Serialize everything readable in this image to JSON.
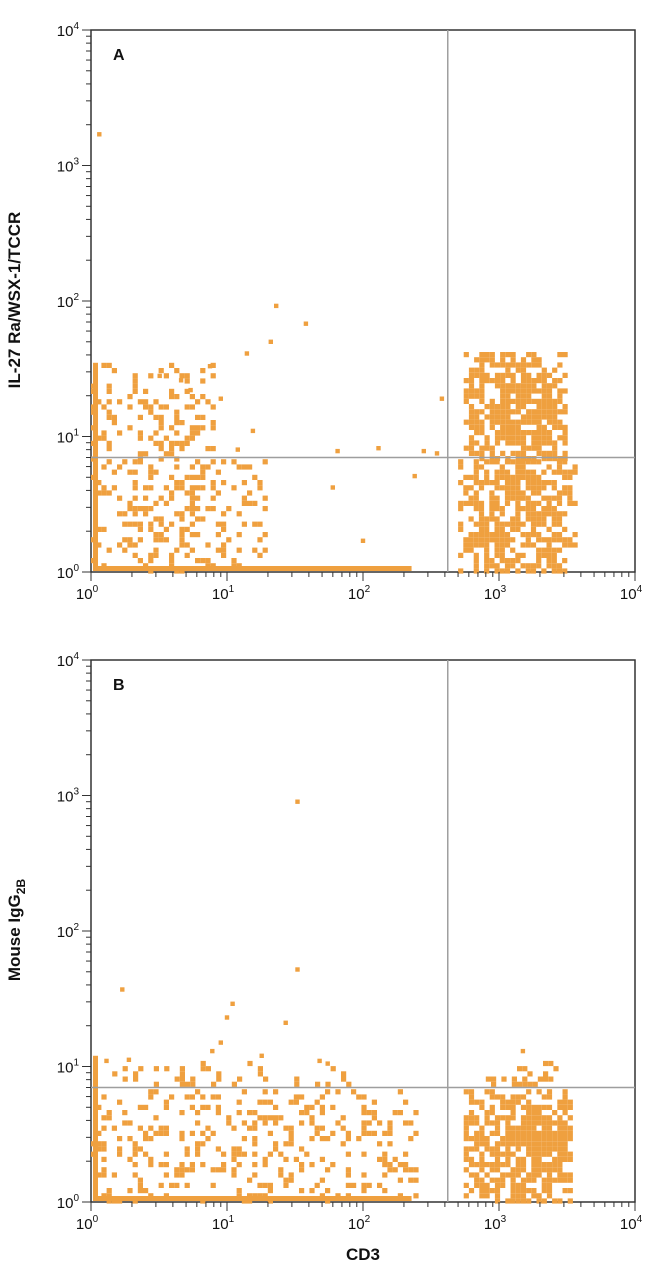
{
  "colors": {
    "dot": "#EFA03F",
    "frame": "#333333",
    "gate": "#9e9e9e",
    "background": "#ffffff"
  },
  "chart_data": [
    {
      "type": "scatter",
      "panel_label": "A",
      "xlabel": "",
      "ylabel": "IL-27 Ra/WSX-1/TCCR",
      "x_scale": "log",
      "y_scale": "log",
      "xlim": [
        1,
        10000
      ],
      "ylim": [
        1,
        10000
      ],
      "x_ticks": [
        1,
        10,
        100,
        1000,
        10000
      ],
      "y_ticks": [
        1,
        10,
        100,
        1000,
        10000
      ],
      "tick_labels": [
        "10",
        "10",
        "10",
        "10",
        "10"
      ],
      "tick_exponents": [
        "0",
        "1",
        "2",
        "3",
        "4"
      ],
      "quadrant_gate": {
        "x": 420,
        "y": 7
      },
      "populations": [
        {
          "name": "CD3- IL-27Ra-",
          "x_range": [
            1,
            20
          ],
          "y_range": [
            1,
            6.8
          ],
          "density": 0.35,
          "seed": 11
        },
        {
          "name": "CD3- IL-27Ra+",
          "x_range": [
            1,
            8
          ],
          "y_range": [
            7,
            35
          ],
          "density": 0.28,
          "seed": 12
        },
        {
          "name": "CD3+ IL-27Ra+",
          "x_range": [
            550,
            3200
          ],
          "y_range": [
            7,
            42
          ],
          "density": 0.85,
          "seed": 13
        },
        {
          "name": "CD3+ IL-27Ra-",
          "x_range": [
            500,
            3600
          ],
          "y_range": [
            1,
            6.8
          ],
          "density": 0.75,
          "seed": 14
        }
      ],
      "points": [
        [
          1.15,
          1700
        ],
        [
          23,
          92
        ],
        [
          38,
          68
        ],
        [
          21,
          50
        ],
        [
          14,
          41
        ],
        [
          7.5,
          33
        ],
        [
          15.5,
          11
        ],
        [
          60,
          4.2
        ],
        [
          100,
          1.7
        ],
        [
          240,
          5.1
        ],
        [
          280,
          7.8
        ],
        [
          380,
          19
        ],
        [
          350,
          7.5
        ],
        [
          3.2,
          28
        ],
        [
          4.6,
          26
        ],
        [
          5.4,
          22
        ],
        [
          9,
          19
        ],
        [
          12,
          8
        ],
        [
          65,
          7.8
        ],
        [
          130,
          8.2
        ]
      ]
    },
    {
      "type": "scatter",
      "panel_label": "B",
      "xlabel": "CD3",
      "ylabel": "Mouse IgG",
      "ylabel_subscript": "2B",
      "x_scale": "log",
      "y_scale": "log",
      "xlim": [
        1,
        10000
      ],
      "ylim": [
        1,
        10000
      ],
      "x_ticks": [
        1,
        10,
        100,
        1000,
        10000
      ],
      "y_ticks": [
        1,
        10,
        100,
        1000,
        10000
      ],
      "tick_labels": [
        "10",
        "10",
        "10",
        "10",
        "10"
      ],
      "tick_exponents": [
        "0",
        "1",
        "2",
        "3",
        "4"
      ],
      "quadrant_gate": {
        "x": 420,
        "y": 7
      },
      "populations": [
        {
          "name": "CD3- lower",
          "x_range": [
            1,
            260
          ],
          "y_range": [
            1,
            6.8
          ],
          "density": 0.3,
          "seed": 21
        },
        {
          "name": "CD3+ lower",
          "x_range": [
            550,
            3500
          ],
          "y_range": [
            1,
            6.8
          ],
          "density": 0.8,
          "seed": 22
        },
        {
          "name": "CD3- upper",
          "x_range": [
            1.2,
            80
          ],
          "y_range": [
            7,
            11
          ],
          "density": 0.12,
          "seed": 23
        },
        {
          "name": "CD3+ upper",
          "x_range": [
            800,
            2600
          ],
          "y_range": [
            7,
            11
          ],
          "density": 0.3,
          "seed": 24
        }
      ],
      "points": [
        [
          33,
          900
        ],
        [
          33,
          52
        ],
        [
          1.7,
          37
        ],
        [
          11,
          29
        ],
        [
          10,
          23
        ],
        [
          27,
          21
        ],
        [
          9,
          15
        ],
        [
          7.8,
          13
        ],
        [
          18,
          12
        ],
        [
          48,
          11
        ],
        [
          55,
          10.5
        ],
        [
          1.3,
          11
        ],
        [
          1.9,
          11.2
        ],
        [
          1500,
          13
        ]
      ]
    }
  ]
}
